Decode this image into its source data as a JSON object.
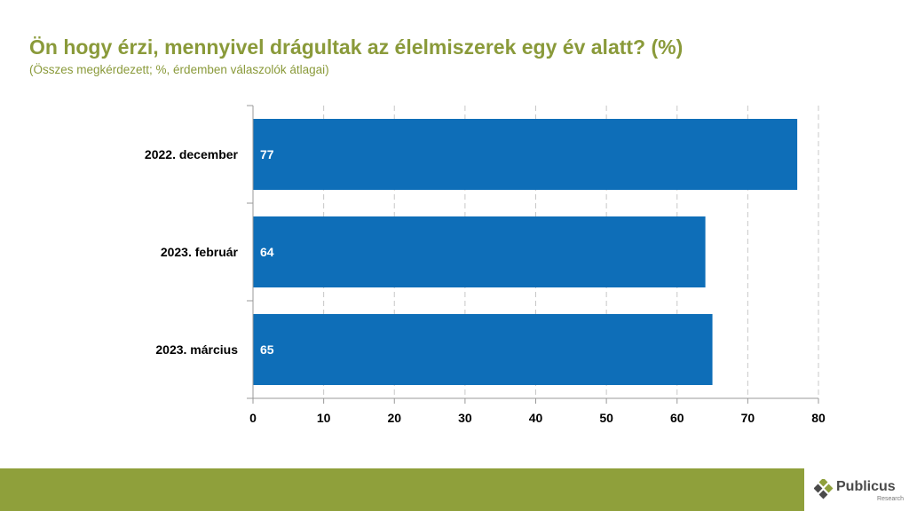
{
  "page": {
    "title": "Ön hogy érzi, mennyivel drágultak az élelmiszerek egy év alatt? (%)",
    "subtitle": "(Összes megkérdezett; %, érdemben válaszolók átlagai)"
  },
  "brand": {
    "name": "Publicus",
    "tagline": "Research"
  },
  "colors": {
    "title": "#8a9a3a",
    "bar": "#0e6eb8",
    "footer": "#8fa03b"
  },
  "chart_data": {
    "type": "bar",
    "orientation": "horizontal",
    "categories": [
      "2022. december",
      "2023. február",
      "2023. március"
    ],
    "values": [
      77,
      64,
      65
    ],
    "data_labels": [
      "77",
      "64",
      "65"
    ],
    "xlim": [
      0,
      80
    ],
    "xticks": [
      0,
      10,
      20,
      30,
      40,
      50,
      60,
      70,
      80
    ],
    "grid": "vertical dashed",
    "legend": "none"
  }
}
